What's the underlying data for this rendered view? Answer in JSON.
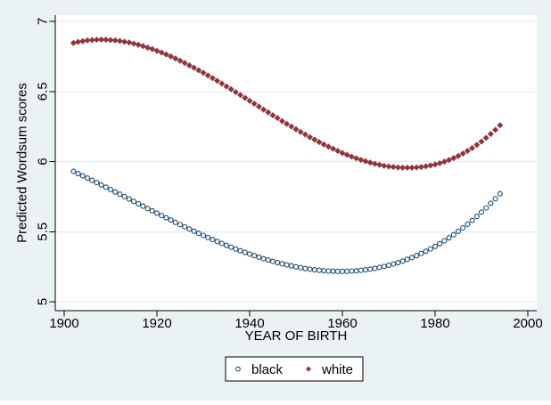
{
  "figure": {
    "background_color": "#eaf2f3",
    "plot_background_color": "#ffffff",
    "grid_color": "#dfeaed",
    "axis_color": "#000000"
  },
  "legend": {
    "items": [
      {
        "label": "black",
        "marker": "circle-hollow",
        "color": "#1a476f"
      },
      {
        "label": "white",
        "marker": "diamond-filled",
        "color": "#90353b"
      }
    ]
  },
  "chart_data": {
    "type": "scatter",
    "title": "",
    "xlabel": "YEAR OF BIRTH",
    "ylabel": "Predicted Wordsum scores",
    "xlim": [
      1898,
      2002
    ],
    "ylim": [
      5,
      7
    ],
    "grid": "horizontal-only",
    "legend_position": "bottom-center",
    "x_ticks": [
      1900,
      1920,
      1940,
      1960,
      1980,
      2000
    ],
    "x_tick_labels": [
      "1900",
      "1920",
      "1940",
      "1960",
      "1980",
      "2000"
    ],
    "y_ticks": [
      5,
      5.5,
      6,
      6.5,
      7
    ],
    "y_tick_labels": [
      "5",
      "5.5",
      "6",
      "6.5",
      "7"
    ],
    "x": [
      1902,
      1903,
      1904,
      1905,
      1906,
      1907,
      1908,
      1909,
      1910,
      1911,
      1912,
      1913,
      1914,
      1915,
      1916,
      1917,
      1918,
      1919,
      1920,
      1921,
      1922,
      1923,
      1924,
      1925,
      1926,
      1927,
      1928,
      1929,
      1930,
      1931,
      1932,
      1933,
      1934,
      1935,
      1936,
      1937,
      1938,
      1939,
      1940,
      1941,
      1942,
      1943,
      1944,
      1945,
      1946,
      1947,
      1948,
      1949,
      1950,
      1951,
      1952,
      1953,
      1954,
      1955,
      1956,
      1957,
      1958,
      1959,
      1960,
      1961,
      1962,
      1963,
      1964,
      1965,
      1966,
      1967,
      1968,
      1969,
      1970,
      1971,
      1972,
      1973,
      1974,
      1975,
      1976,
      1977,
      1978,
      1979,
      1980,
      1981,
      1982,
      1983,
      1984,
      1985,
      1986,
      1987,
      1988,
      1989,
      1990,
      1991,
      1992,
      1993,
      1994
    ],
    "series": [
      {
        "id": "black",
        "name": "black",
        "marker": "circle-hollow",
        "color": "#1a476f",
        "values": [
          5.93,
          5.914,
          5.898,
          5.882,
          5.866,
          5.85,
          5.833,
          5.817,
          5.8,
          5.783,
          5.767,
          5.75,
          5.733,
          5.716,
          5.699,
          5.682,
          5.665,
          5.649,
          5.632,
          5.615,
          5.599,
          5.583,
          5.566,
          5.55,
          5.535,
          5.519,
          5.503,
          5.488,
          5.473,
          5.458,
          5.444,
          5.43,
          5.416,
          5.402,
          5.389,
          5.376,
          5.364,
          5.352,
          5.34,
          5.329,
          5.318,
          5.307,
          5.298,
          5.288,
          5.279,
          5.271,
          5.263,
          5.256,
          5.249,
          5.243,
          5.237,
          5.232,
          5.228,
          5.224,
          5.222,
          5.219,
          5.218,
          5.217,
          5.217,
          5.217,
          5.219,
          5.221,
          5.224,
          5.228,
          5.233,
          5.238,
          5.245,
          5.252,
          5.26,
          5.269,
          5.279,
          5.29,
          5.302,
          5.315,
          5.329,
          5.344,
          5.36,
          5.377,
          5.395,
          5.414,
          5.435,
          5.456,
          5.478,
          5.502,
          5.527,
          5.553,
          5.58,
          5.609,
          5.639,
          5.669,
          5.702,
          5.735,
          5.77
        ]
      },
      {
        "id": "white",
        "name": "white",
        "marker": "diamond-filled",
        "color": "#90353b",
        "values": [
          6.846,
          6.853,
          6.859,
          6.864,
          6.867,
          6.869,
          6.87,
          6.869,
          6.867,
          6.864,
          6.86,
          6.855,
          6.849,
          6.841,
          6.833,
          6.824,
          6.813,
          6.802,
          6.79,
          6.778,
          6.764,
          6.75,
          6.735,
          6.719,
          6.703,
          6.686,
          6.669,
          6.651,
          6.633,
          6.614,
          6.595,
          6.576,
          6.556,
          6.536,
          6.516,
          6.495,
          6.475,
          6.454,
          6.433,
          6.413,
          6.392,
          6.371,
          6.351,
          6.33,
          6.31,
          6.289,
          6.269,
          6.25,
          6.23,
          6.211,
          6.193,
          6.174,
          6.156,
          6.139,
          6.122,
          6.106,
          6.091,
          6.076,
          6.061,
          6.048,
          6.035,
          6.023,
          6.012,
          6.002,
          5.993,
          5.984,
          5.977,
          5.97,
          5.965,
          5.961,
          5.958,
          5.956,
          5.956,
          5.956,
          5.958,
          5.961,
          5.966,
          5.972,
          5.979,
          5.988,
          5.999,
          6.011,
          6.025,
          6.04,
          6.057,
          6.076,
          6.096,
          6.119,
          6.143,
          6.169,
          6.197,
          6.226,
          6.259
        ]
      }
    ]
  }
}
